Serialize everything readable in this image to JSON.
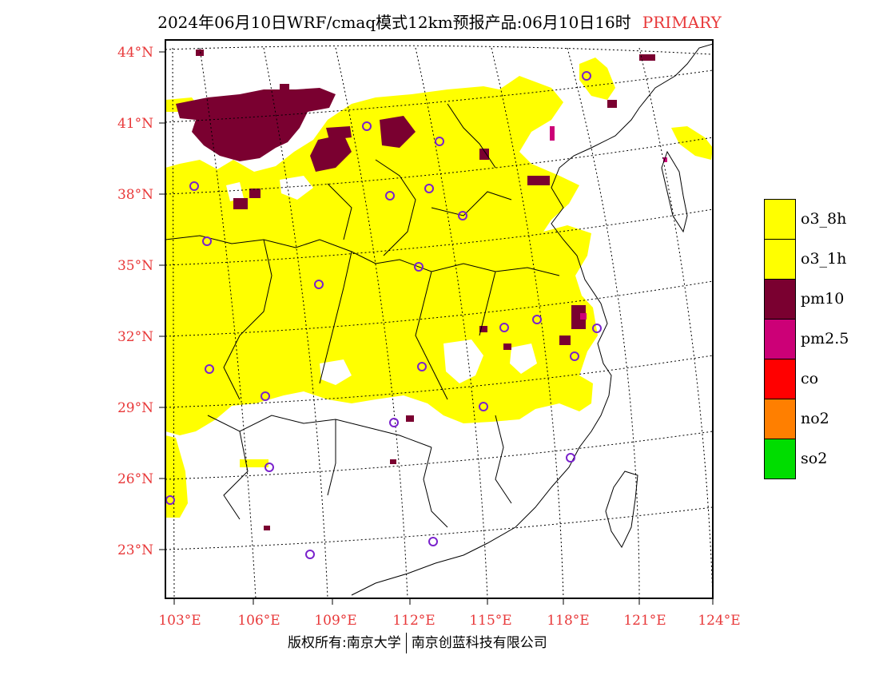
{
  "title": {
    "main": "2024年06月10日WRF/cmaq模式12km预报产品:06月10日16时",
    "tag": "PRIMARY"
  },
  "footer": {
    "left": "版权所有:南京大学",
    "right": "南京创蓝科技有限公司"
  },
  "axes": {
    "lat_labels": [
      "44°N",
      "41°N",
      "38°N",
      "35°N",
      "32°N",
      "29°N",
      "26°N",
      "23°N"
    ],
    "lon_labels": [
      "103°E",
      "106°E",
      "109°E",
      "112°E",
      "115°E",
      "118°E",
      "121°E",
      "124°E"
    ]
  },
  "legend": [
    {
      "label": "o3_8h",
      "color": "#ffff00"
    },
    {
      "label": "o3_1h",
      "color": "#ffff00"
    },
    {
      "label": "pm10",
      "color": "#7a0030"
    },
    {
      "label": "pm2.5",
      "color": "#cc0077"
    },
    {
      "label": "co",
      "color": "#ff0000"
    },
    {
      "label": "no2",
      "color": "#ff7f00"
    },
    {
      "label": "so2",
      "color": "#00dd00"
    }
  ],
  "colors": {
    "o3": "#ffff00",
    "pm10": "#7a0030",
    "station": "#7a22cc",
    "axis_label": "#e8393a"
  }
}
